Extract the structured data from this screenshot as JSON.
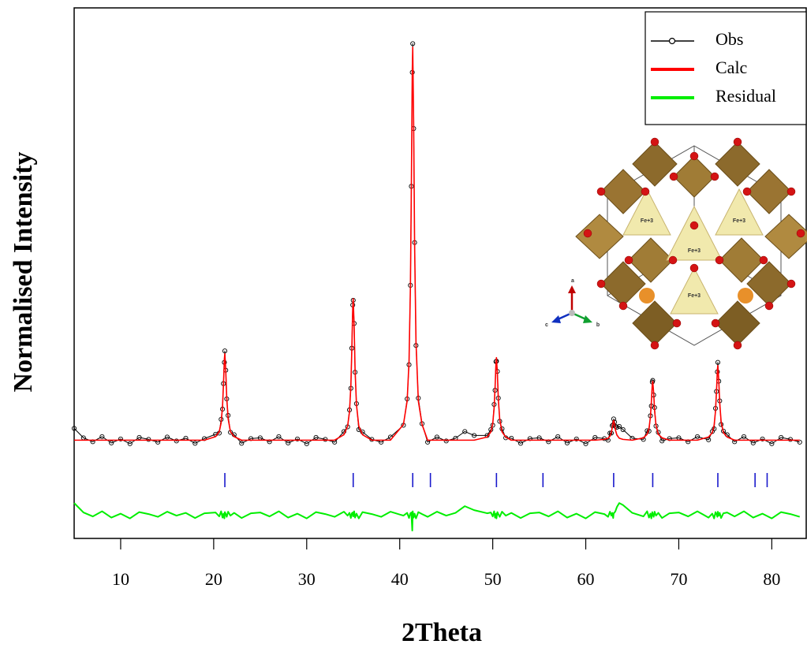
{
  "chart_data": {
    "type": "line",
    "x_label": "2Theta",
    "y_label": "Normalised Intensity",
    "xlim": [
      5,
      83.7
    ],
    "ylim": [
      -0.25,
      1.1
    ],
    "xticks": [
      10,
      20,
      30,
      40,
      50,
      60,
      70,
      80
    ],
    "legend": "top-right",
    "x": [
      5,
      6,
      7,
      8,
      9,
      10,
      11,
      12,
      13,
      14,
      15,
      16,
      17,
      18,
      19,
      20.2,
      20.6,
      20.8,
      20.95,
      21.05,
      21.15,
      21.2,
      21.3,
      21.4,
      21.55,
      21.8,
      22.2,
      23,
      24,
      25,
      26,
      27,
      28,
      29,
      30,
      31,
      32,
      33,
      34,
      34.4,
      34.6,
      34.75,
      34.85,
      34.95,
      35,
      35.1,
      35.2,
      35.35,
      35.6,
      36,
      37,
      38,
      39,
      40.4,
      40.8,
      41,
      41.15,
      41.25,
      41.35,
      41.4,
      41.5,
      41.6,
      41.75,
      42,
      42.4,
      43,
      44,
      45,
      46,
      47,
      48,
      49.4,
      49.8,
      50,
      50.15,
      50.25,
      50.35,
      50.4,
      50.5,
      50.6,
      50.75,
      51,
      51.4,
      52,
      53,
      54,
      55,
      56,
      57,
      58,
      59,
      60,
      61,
      62,
      62.4,
      62.6,
      62.75,
      62.85,
      62.95,
      63,
      63.1,
      63.2,
      63.35,
      63.6,
      64,
      65,
      66.2,
      66.6,
      66.8,
      66.95,
      67.05,
      67.15,
      67.2,
      67.3,
      67.4,
      67.55,
      67.8,
      68.2,
      69,
      70,
      71,
      72,
      73.2,
      73.6,
      73.8,
      73.95,
      74.05,
      74.15,
      74.2,
      74.3,
      74.4,
      74.55,
      74.8,
      75.2,
      76,
      77,
      78,
      79,
      80,
      81,
      82,
      83
    ],
    "series": [
      {
        "name": "Obs",
        "color": "#000000",
        "marker": "circle",
        "values": [
          0.03,
          0.006,
          -0.004,
          0.009,
          -0.007,
          0.003,
          -0.009,
          0.007,
          0.002,
          -0.005,
          0.008,
          -0.002,
          0.005,
          -0.008,
          0.004,
          0.015,
          0.018,
          0.053,
          0.079,
          0.144,
          0.198,
          0.227,
          0.178,
          0.105,
          0.063,
          0.02,
          0.014,
          -0.008,
          0.004,
          0.006,
          -0.004,
          0.009,
          -0.007,
          0.003,
          -0.009,
          0.007,
          0.002,
          -0.005,
          0.022,
          0.034,
          0.077,
          0.132,
          0.234,
          0.344,
          0.356,
          0.297,
          0.173,
          0.093,
          0.027,
          0.021,
          0.002,
          -0.005,
          0.008,
          0.038,
          0.105,
          0.192,
          0.394,
          0.646,
          0.936,
          1.009,
          0.793,
          0.503,
          0.241,
          0.107,
          0.042,
          -0.005,
          0.008,
          -0.002,
          0.005,
          0.022,
          0.012,
          0.012,
          0.027,
          0.038,
          0.091,
          0.127,
          0.2,
          0.201,
          0.175,
          0.107,
          0.048,
          0.029,
          0.006,
          0.005,
          -0.008,
          0.004,
          0.006,
          -0.004,
          0.009,
          -0.007,
          0.003,
          -0.009,
          0.007,
          0.004,
          0,
          0.018,
          0.018,
          0.037,
          0.039,
          0.054,
          0.046,
          0.035,
          0.033,
          0.035,
          0.027,
          0.005,
          0.002,
          0.024,
          0.023,
          0.062,
          0.087,
          0.148,
          0.152,
          0.115,
          0.083,
          0.036,
          0.02,
          -0.002,
          0.004,
          0.006,
          -0.004,
          0.009,
          0.001,
          0.022,
          0.029,
          0.081,
          0.124,
          0.174,
          0.198,
          0.15,
          0.1,
          0.04,
          0.023,
          0.014,
          -0.004,
          0.009,
          -0.007,
          0.003,
          -0.009,
          0.007,
          0.002,
          -0.005
        ]
      },
      {
        "name": "Calc",
        "color": "#ff0000",
        "values": [
          0,
          0,
          0,
          0,
          0,
          0,
          0,
          0,
          0,
          0,
          0,
          0,
          0,
          0,
          0,
          0.009,
          0.022,
          0.044,
          0.086,
          0.141,
          0.207,
          0.22,
          0.176,
          0.11,
          0.055,
          0.022,
          0.009,
          0,
          0,
          0,
          0,
          0,
          0,
          0,
          0,
          0,
          0,
          0,
          0.014,
          0.036,
          0.072,
          0.14,
          0.23,
          0.338,
          0.36,
          0.288,
          0.18,
          0.09,
          0.036,
          0.014,
          0,
          0,
          0,
          0.04,
          0.1,
          0.2,
          0.39,
          0.64,
          0.94,
          1,
          0.8,
          0.5,
          0.25,
          0.1,
          0.04,
          0,
          0,
          0,
          0,
          0,
          0,
          0.008,
          0.021,
          0.042,
          0.082,
          0.134,
          0.197,
          0.21,
          0.168,
          0.105,
          0.053,
          0.021,
          0.008,
          0,
          0,
          0,
          0,
          0,
          0,
          0,
          0,
          0,
          0,
          0.002,
          0.005,
          0.01,
          0.02,
          0.032,
          0.047,
          0.05,
          0.04,
          0.025,
          0.013,
          0.005,
          0.002,
          0,
          0.006,
          0.015,
          0.03,
          0.059,
          0.096,
          0.141,
          0.15,
          0.12,
          0.075,
          0.038,
          0.015,
          0.006,
          0,
          0,
          0,
          0,
          0.008,
          0.019,
          0.038,
          0.074,
          0.122,
          0.179,
          0.19,
          0.152,
          0.095,
          0.048,
          0.019,
          0.008,
          0,
          0,
          0,
          0,
          0,
          0,
          0,
          0
        ]
      },
      {
        "name": "Residual",
        "color": "#00ee00",
        "values": [
          -0.16,
          -0.184,
          -0.194,
          -0.181,
          -0.197,
          -0.187,
          -0.199,
          -0.183,
          -0.188,
          -0.195,
          -0.182,
          -0.192,
          -0.185,
          -0.198,
          -0.186,
          -0.184,
          -0.194,
          -0.181,
          -0.197,
          -0.187,
          -0.199,
          -0.183,
          -0.188,
          -0.195,
          -0.182,
          -0.192,
          -0.185,
          -0.198,
          -0.186,
          -0.184,
          -0.194,
          -0.181,
          -0.197,
          -0.187,
          -0.199,
          -0.183,
          -0.188,
          -0.195,
          -0.182,
          -0.192,
          -0.185,
          -0.198,
          -0.186,
          -0.184,
          -0.194,
          -0.181,
          -0.197,
          -0.187,
          -0.199,
          -0.183,
          -0.188,
          -0.195,
          -0.182,
          -0.192,
          -0.185,
          -0.198,
          -0.186,
          -0.184,
          -0.23,
          -0.181,
          -0.197,
          -0.187,
          -0.199,
          -0.183,
          -0.188,
          -0.195,
          -0.182,
          -0.192,
          -0.185,
          -0.168,
          -0.178,
          -0.186,
          -0.184,
          -0.194,
          -0.181,
          -0.197,
          -0.187,
          -0.199,
          -0.183,
          -0.188,
          -0.195,
          -0.182,
          -0.192,
          -0.185,
          -0.198,
          -0.186,
          -0.184,
          -0.194,
          -0.181,
          -0.197,
          -0.187,
          -0.199,
          -0.183,
          -0.188,
          -0.195,
          -0.182,
          -0.192,
          -0.185,
          -0.198,
          -0.186,
          -0.184,
          -0.18,
          -0.17,
          -0.16,
          -0.165,
          -0.185,
          -0.194,
          -0.181,
          -0.197,
          -0.187,
          -0.199,
          -0.183,
          -0.188,
          -0.195,
          -0.182,
          -0.192,
          -0.185,
          -0.198,
          -0.186,
          -0.184,
          -0.194,
          -0.181,
          -0.197,
          -0.187,
          -0.199,
          -0.183,
          -0.188,
          -0.195,
          -0.182,
          -0.192,
          -0.185,
          -0.198,
          -0.186,
          -0.184,
          -0.194,
          -0.181,
          -0.197,
          -0.187,
          -0.199,
          -0.183,
          -0.188,
          -0.195
        ]
      }
    ],
    "reflections": {
      "color": "#1a1acc",
      "x": [
        21.2,
        35.0,
        41.4,
        43.3,
        50.4,
        55.4,
        63.0,
        67.2,
        74.2,
        78.2,
        79.5
      ]
    }
  },
  "inset": {
    "site_labels": [
      "Fe+3",
      "Fe+3",
      "Fe+3",
      "Fe+3"
    ],
    "axis_labels": [
      "a",
      "b",
      "c"
    ]
  }
}
